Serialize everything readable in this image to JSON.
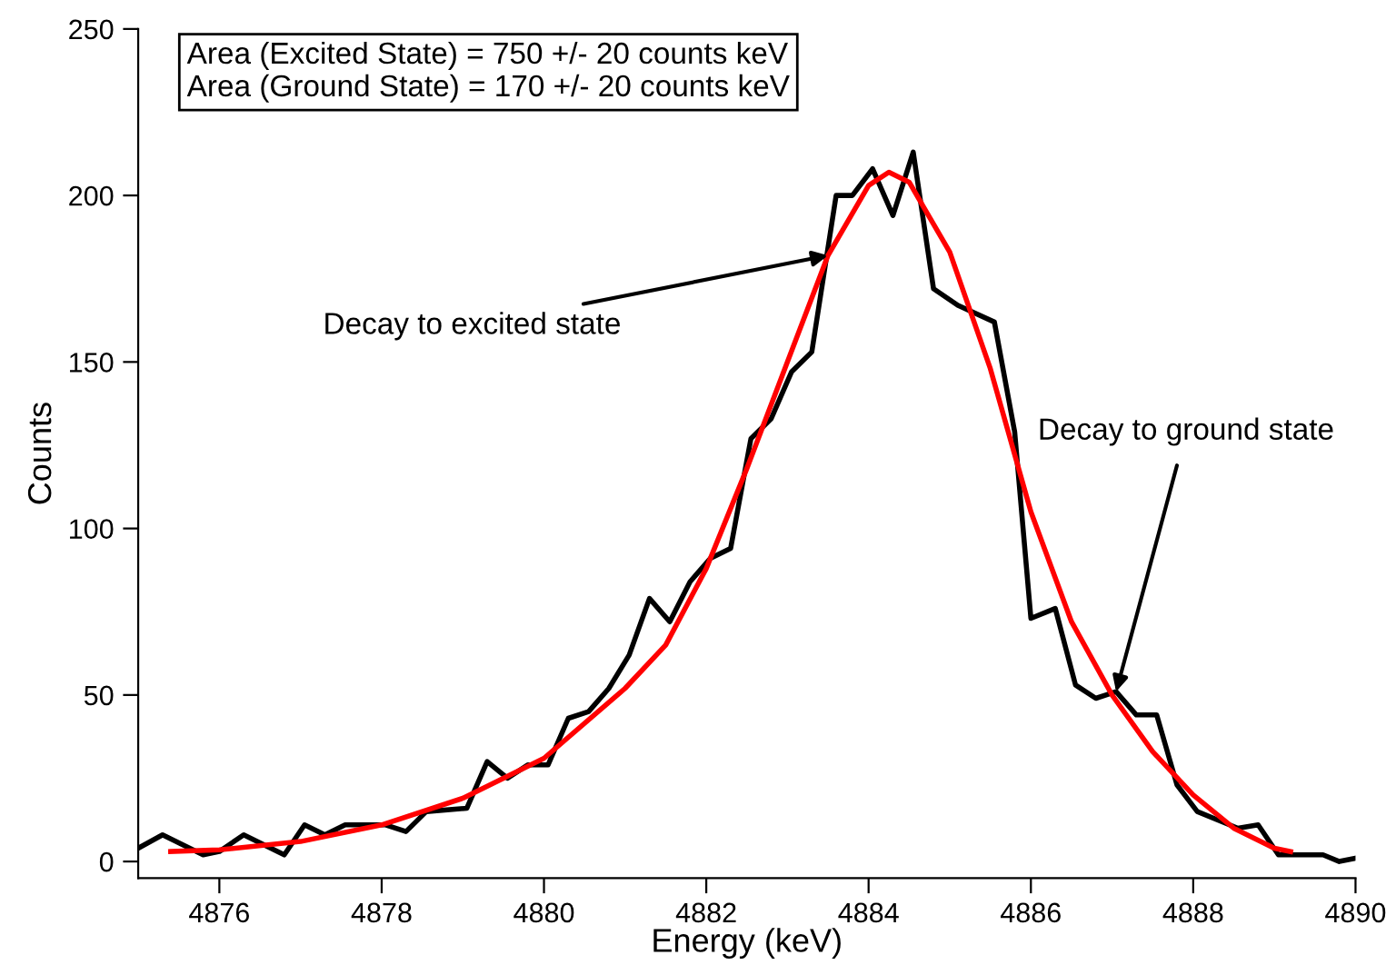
{
  "chart_data": {
    "type": "line",
    "xlabel": "Energy (keV)",
    "ylabel": "Counts",
    "series": [
      {
        "color": "#000000",
        "x": [
          4875.0,
          4875.3,
          4875.8,
          4876.0,
          4876.3,
          4876.55,
          4876.8,
          4877.05,
          4877.3,
          4877.55,
          4878.05,
          4878.3,
          4878.55,
          4879.05,
          4879.3,
          4879.55,
          4879.8,
          4880.05,
          4880.3,
          4880.55,
          4880.8,
          4881.05,
          4881.3,
          4881.55,
          4881.8,
          4882.05,
          4882.3,
          4882.55,
          4882.8,
          4883.05,
          4883.3,
          4883.6,
          4883.8,
          4884.05,
          4884.3,
          4884.55,
          4884.8,
          4885.1,
          4885.55,
          4885.8,
          4886.0,
          4886.3,
          4886.55,
          4886.8,
          4887.05,
          4887.3,
          4887.55,
          4887.8,
          4888.05,
          4888.55,
          4888.8,
          4889.05,
          4889.6,
          4889.8,
          4890.0
        ],
        "values": [
          4,
          8,
          2,
          3,
          8,
          5,
          2,
          11,
          8,
          11,
          11,
          9,
          15,
          16,
          30,
          25,
          29,
          29,
          43,
          45,
          52,
          62,
          79,
          72,
          84,
          91,
          94,
          127,
          133,
          147,
          153,
          200,
          200,
          208,
          194,
          213,
          172,
          167,
          162,
          129,
          73,
          76,
          53,
          49,
          51,
          44,
          44,
          23,
          15,
          10,
          11,
          2,
          2,
          0,
          1
        ]
      },
      {
        "color": "#ff0000",
        "x": [
          4875.4,
          4876,
          4877,
          4878,
          4879,
          4880,
          4881,
          4881.5,
          4882,
          4882.5,
          4883,
          4883.5,
          4884,
          4884.25,
          4884.5,
          4885,
          4885.5,
          4886,
          4886.5,
          4887,
          4887.5,
          4888,
          4888.5,
          4889,
          4889.2
        ],
        "values": [
          3,
          3.5,
          6,
          11,
          19,
          31,
          52,
          65,
          88,
          118,
          150,
          182,
          203,
          207,
          204,
          183,
          148,
          105,
          72,
          50,
          33,
          20,
          10,
          4,
          3
        ]
      }
    ],
    "xlim": [
      4875,
      4890
    ],
    "xticks": [
      4876,
      4878,
      4880,
      4882,
      4884,
      4886,
      4888,
      4890
    ],
    "ylim": [
      -5,
      250
    ],
    "yticks": [
      0,
      50,
      100,
      150,
      200,
      250
    ],
    "grid": false,
    "legend": false,
    "marker": "none",
    "line_style": "solid",
    "annotations": [
      "Area (Excited State) = 750 +/- 20 counts keV\nArea (Ground State) = 170 +/- 20 counts keV",
      {
        "text": "Decay to excited state",
        "x": 4883.5,
        "y": 182
      },
      {
        "text": "Decay to ground state",
        "x": 4887.05,
        "y": 51
      }
    ]
  }
}
